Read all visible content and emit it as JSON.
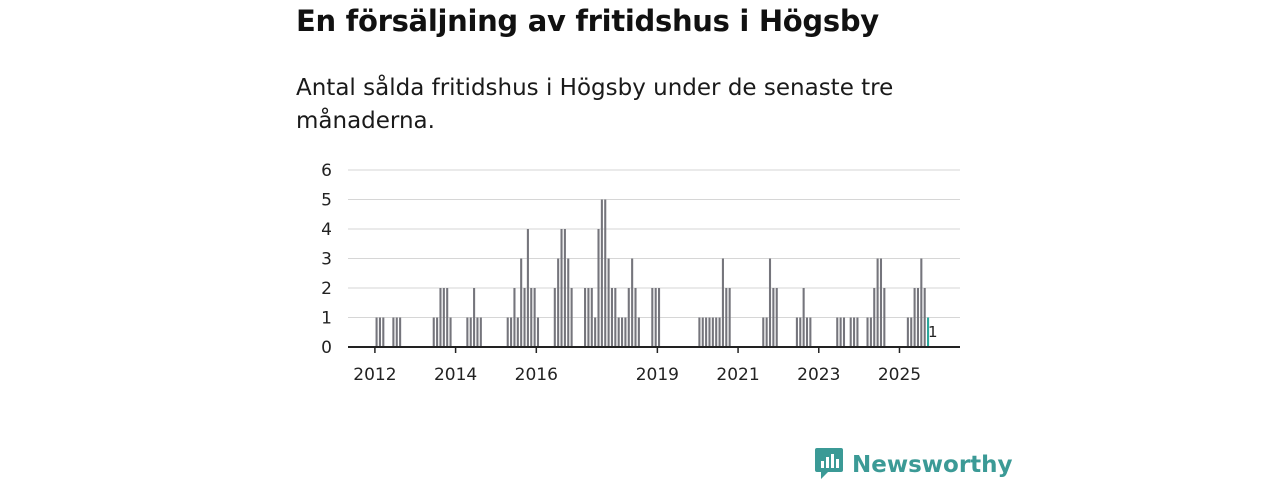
{
  "header": {
    "title": "En försäljning av fritidshus i Högsby",
    "subtitle": "Antal sålda fritidshus i Högsby under de senaste tre månaderna."
  },
  "brand": {
    "name": "Newsworthy",
    "color": "#3b9a96",
    "icon": "newsworthy-logo-icon"
  },
  "colors": {
    "bar": "#75757c",
    "highlight": "#2aa79b",
    "grid": "#d6d6d6",
    "axis": "#222222"
  },
  "chart_data": {
    "type": "bar",
    "title": "En försäljning av fritidshus i Högsby",
    "subtitle": "Antal sålda fritidshus i Högsby under de senaste tre månaderna.",
    "ylim": [
      0,
      6
    ],
    "yticks": [
      0,
      1,
      2,
      3,
      4,
      5,
      6
    ],
    "xticks": [
      "2012",
      "2014",
      "2016",
      "2019",
      "2021",
      "2023",
      "2025"
    ],
    "grid": true,
    "x_start": "2011-05",
    "x_end": "2025-11",
    "series": [
      {
        "values": [
          0,
          0,
          0,
          0,
          0,
          0,
          0,
          0,
          1,
          1,
          1,
          0,
          0,
          1,
          1,
          1,
          0,
          0,
          0,
          0,
          0,
          0,
          0,
          0,
          0,
          1,
          1,
          2,
          2,
          2,
          1,
          0,
          0,
          0,
          0,
          1,
          1,
          2,
          1,
          1,
          0,
          0,
          0,
          0,
          0,
          0,
          0,
          1,
          1,
          2,
          1,
          3,
          2,
          4,
          2,
          2,
          1,
          0,
          0,
          0,
          0,
          2,
          3,
          4,
          4,
          3,
          2,
          0,
          0,
          0,
          2,
          2,
          2,
          1,
          4,
          5,
          5,
          3,
          2,
          2,
          1,
          1,
          1,
          2,
          3,
          2,
          1,
          0,
          0,
          0,
          2,
          2,
          2,
          0,
          0,
          0,
          0,
          0,
          0,
          0,
          0,
          0,
          0,
          0,
          1,
          1,
          1,
          1,
          1,
          1,
          1,
          3,
          2,
          2,
          0,
          0,
          0,
          0,
          0,
          0,
          0,
          0,
          0,
          1,
          1,
          3,
          2,
          2,
          0,
          0,
          0,
          0,
          0,
          1,
          1,
          2,
          1,
          1,
          0,
          0,
          0,
          0,
          0,
          0,
          0,
          1,
          1,
          1,
          0,
          1,
          1,
          1,
          0,
          0,
          1,
          1,
          2,
          3,
          3,
          2,
          0,
          0,
          0,
          0,
          0,
          0,
          1,
          1,
          2,
          2,
          3,
          2,
          1
        ]
      }
    ],
    "annotations": [
      {
        "text": "1",
        "at": "2025-11"
      }
    ]
  }
}
